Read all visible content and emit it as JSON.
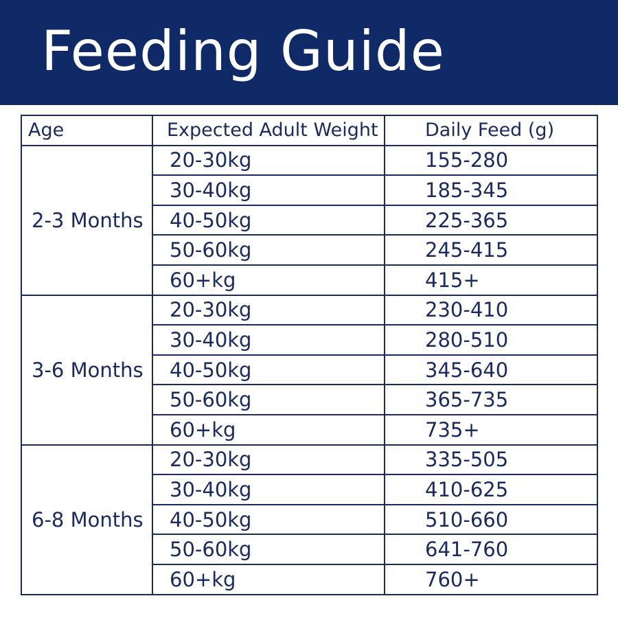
{
  "title": "Feeding Guide",
  "colors": {
    "banner_background": "#0f2a66",
    "banner_text": "#ffffff",
    "table_text_and_border": "#1b2a5e",
    "page_background": "#ffffff"
  },
  "table": {
    "headers": {
      "age": "Age",
      "weight": "Expected Adult Weight",
      "feed": "Daily Feed (g)"
    },
    "groups": [
      {
        "age": "2-3 Months",
        "rows": [
          {
            "weight": "20-30kg",
            "feed": "155-280"
          },
          {
            "weight": "30-40kg",
            "feed": "185-345"
          },
          {
            "weight": "40-50kg",
            "feed": "225-365"
          },
          {
            "weight": "50-60kg",
            "feed": "245-415"
          },
          {
            "weight": "60+kg",
            "feed": "415+"
          }
        ]
      },
      {
        "age": "3-6 Months",
        "rows": [
          {
            "weight": "20-30kg",
            "feed": "230-410"
          },
          {
            "weight": "30-40kg",
            "feed": "280-510"
          },
          {
            "weight": "40-50kg",
            "feed": "345-640"
          },
          {
            "weight": "50-60kg",
            "feed": "365-735"
          },
          {
            "weight": "60+kg",
            "feed": "735+"
          }
        ]
      },
      {
        "age": "6-8 Months",
        "rows": [
          {
            "weight": "20-30kg",
            "feed": "335-505"
          },
          {
            "weight": "30-40kg",
            "feed": "410-625"
          },
          {
            "weight": "40-50kg",
            "feed": "510-660"
          },
          {
            "weight": "50-60kg",
            "feed": "641-760"
          },
          {
            "weight": "60+kg",
            "feed": "760+"
          }
        ]
      }
    ]
  }
}
